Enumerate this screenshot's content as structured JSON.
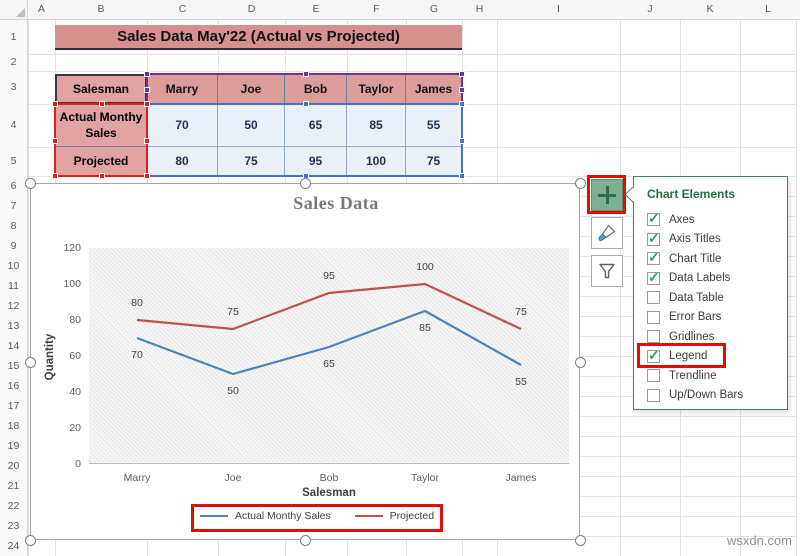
{
  "window": {
    "watermark": "wsxdn.com"
  },
  "sheet": {
    "banner_title": "Sales Data May'22 (Actual vs Projected)",
    "column_headers": [
      "A",
      "B",
      "C",
      "D",
      "E",
      "F",
      "G",
      "H",
      "I",
      "J",
      "K",
      "L"
    ],
    "row_headers": [
      "1",
      "2",
      "3",
      "4",
      "5",
      "6",
      "7",
      "8",
      "9",
      "10",
      "11",
      "12",
      "13",
      "14",
      "15",
      "16",
      "17",
      "18",
      "19",
      "20",
      "21",
      "22",
      "23",
      "24"
    ]
  },
  "table": {
    "corner_header": "Salesman",
    "column_headers": [
      "Marry",
      "Joe",
      "Bob",
      "Taylor",
      "James"
    ],
    "rows": [
      {
        "label": "Actual Monthy Sales",
        "values": [
          "70",
          "50",
          "65",
          "85",
          "55"
        ]
      },
      {
        "label": "Projected",
        "values": [
          "80",
          "75",
          "95",
          "100",
          "75"
        ]
      }
    ]
  },
  "chart_data": {
    "type": "line",
    "title": "Sales Data",
    "xlabel": "Salesman",
    "ylabel": "Quantity",
    "categories": [
      "Marry",
      "Joe",
      "Bob",
      "Taylor",
      "James"
    ],
    "series": [
      {
        "name": "Actual Monthy Sales",
        "color": "#4f81bd",
        "values": [
          70,
          50,
          65,
          85,
          55
        ]
      },
      {
        "name": "Projected",
        "color": "#c0504d",
        "values": [
          80,
          75,
          95,
          100,
          75
        ]
      }
    ],
    "ylim": [
      0,
      120
    ],
    "yticks": [
      0,
      20,
      40,
      60,
      80,
      100,
      120
    ],
    "grid": false,
    "data_labels": true,
    "legend_position": "bottom"
  },
  "chart_elements": {
    "title": "Chart Elements",
    "items": [
      {
        "label": "Axes",
        "checked": true
      },
      {
        "label": "Axis Titles",
        "checked": true
      },
      {
        "label": "Chart Title",
        "checked": true
      },
      {
        "label": "Data Labels",
        "checked": true
      },
      {
        "label": "Data Table",
        "checked": false
      },
      {
        "label": "Error Bars",
        "checked": false
      },
      {
        "label": "Gridlines",
        "checked": false
      },
      {
        "label": "Legend",
        "checked": true,
        "highlighted": true
      },
      {
        "label": "Trendline",
        "checked": false
      },
      {
        "label": "Up/Down Bars",
        "checked": false
      }
    ],
    "check_glyph": "✓"
  },
  "colors": {
    "banner_bg": "#d6908e",
    "table_header_bg": "#dc9c9a",
    "table_label_bg": "#e0a3a1",
    "table_data_bg": "#eaf0f8",
    "table_data_text": "#1f3150",
    "selection_red": "#e0201a",
    "selection_purple": "#7030a0",
    "selection_blue": "#4472c4"
  }
}
